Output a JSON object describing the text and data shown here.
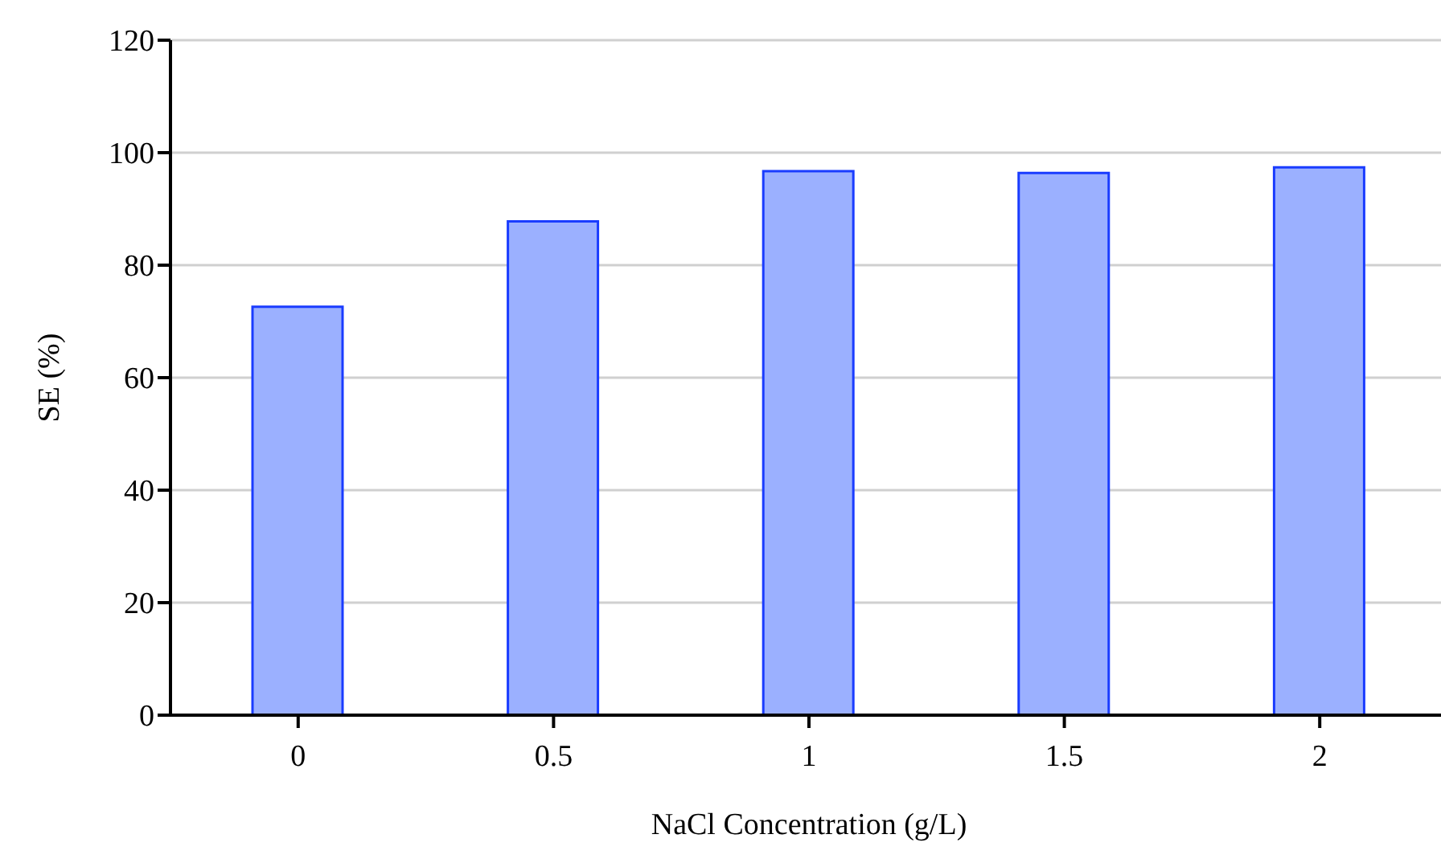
{
  "chart_data": {
    "type": "bar",
    "xlabel": "NaCl Concentration (g/L)",
    "ylabel": "SE (%)",
    "categories": [
      "0",
      "0.5",
      "1",
      "1.5",
      "2"
    ],
    "values": [
      72.6,
      87.8,
      96.7,
      96.4,
      97.4
    ],
    "color": "#9bb0ff",
    "ylim": [
      0,
      120
    ],
    "yticks": [
      0,
      20,
      40,
      60,
      80,
      100,
      120
    ],
    "grid": "y"
  }
}
